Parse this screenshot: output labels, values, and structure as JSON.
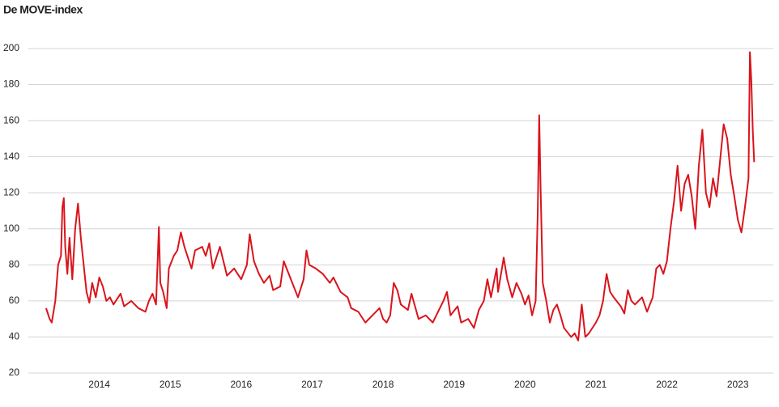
{
  "chart_data": {
    "type": "line",
    "title": "De MOVE-index",
    "x": [
      2013.25,
      2013.3,
      2013.33,
      2013.38,
      2013.42,
      2013.46,
      2013.48,
      2013.5,
      2013.52,
      2013.55,
      2013.58,
      2013.62,
      2013.66,
      2013.7,
      2013.74,
      2013.78,
      2013.82,
      2013.86,
      2013.9,
      2013.95,
      2014.0,
      2014.05,
      2014.1,
      2014.15,
      2014.2,
      2014.3,
      2014.35,
      2014.45,
      2014.55,
      2014.65,
      2014.7,
      2014.75,
      2014.8,
      2014.84,
      2014.86,
      2014.9,
      2014.95,
      2014.98,
      2015.0,
      2015.05,
      2015.1,
      2015.15,
      2015.2,
      2015.25,
      2015.3,
      2015.35,
      2015.45,
      2015.5,
      2015.55,
      2015.6,
      2015.7,
      2015.75,
      2015.8,
      2015.9,
      2016.0,
      2016.08,
      2016.12,
      2016.18,
      2016.25,
      2016.32,
      2016.4,
      2016.45,
      2016.55,
      2016.6,
      2016.7,
      2016.8,
      2016.88,
      2016.92,
      2016.96,
      2017.05,
      2017.15,
      2017.25,
      2017.3,
      2017.4,
      2017.5,
      2017.55,
      2017.65,
      2017.75,
      2017.85,
      2017.95,
      2018.0,
      2018.05,
      2018.1,
      2018.15,
      2018.2,
      2018.25,
      2018.35,
      2018.4,
      2018.5,
      2018.6,
      2018.7,
      2018.8,
      2018.85,
      2018.9,
      2018.95,
      2019.05,
      2019.1,
      2019.2,
      2019.28,
      2019.35,
      2019.42,
      2019.47,
      2019.52,
      2019.6,
      2019.62,
      2019.7,
      2019.75,
      2019.82,
      2019.88,
      2019.95,
      2020.0,
      2020.05,
      2020.1,
      2020.15,
      2020.18,
      2020.2,
      2020.22,
      2020.25,
      2020.3,
      2020.35,
      2020.4,
      2020.45,
      2020.5,
      2020.55,
      2020.65,
      2020.7,
      2020.75,
      2020.8,
      2020.85,
      2020.9,
      2021.0,
      2021.05,
      2021.1,
      2021.15,
      2021.2,
      2021.25,
      2021.35,
      2021.4,
      2021.45,
      2021.5,
      2021.55,
      2021.65,
      2021.72,
      2021.8,
      2021.85,
      2021.9,
      2021.95,
      2022.0,
      2022.05,
      2022.1,
      2022.15,
      2022.2,
      2022.25,
      2022.3,
      2022.35,
      2022.4,
      2022.45,
      2022.5,
      2022.55,
      2022.6,
      2022.65,
      2022.7,
      2022.75,
      2022.8,
      2022.85,
      2022.9,
      2022.95,
      2023.0,
      2023.05,
      2023.1,
      2023.15,
      2023.17,
      2023.19,
      2023.21,
      2023.23
    ],
    "series": [
      {
        "color": "#d9141c",
        "values": [
          56,
          50,
          48,
          60,
          80,
          85,
          112,
          117,
          90,
          75,
          95,
          72,
          100,
          114,
          95,
          80,
          65,
          59,
          70,
          62,
          73,
          68,
          60,
          62,
          58,
          64,
          57,
          60,
          56,
          54,
          60,
          64,
          58,
          101,
          70,
          65,
          56,
          78,
          80,
          85,
          88,
          98,
          90,
          84,
          78,
          88,
          90,
          85,
          92,
          78,
          90,
          82,
          74,
          78,
          72,
          80,
          97,
          82,
          75,
          70,
          74,
          66,
          68,
          82,
          72,
          62,
          72,
          88,
          80,
          78,
          75,
          70,
          73,
          65,
          62,
          56,
          54,
          48,
          52,
          56,
          50,
          48,
          52,
          70,
          66,
          58,
          55,
          64,
          50,
          52,
          48,
          56,
          60,
          65,
          52,
          57,
          48,
          50,
          45,
          55,
          60,
          72,
          62,
          78,
          65,
          84,
          72,
          62,
          70,
          64,
          58,
          63,
          52,
          60,
          110,
          163,
          122,
          70,
          60,
          48,
          55,
          58,
          52,
          45,
          40,
          42,
          38,
          58,
          40,
          42,
          48,
          52,
          60,
          75,
          65,
          62,
          57,
          53,
          66,
          60,
          58,
          62,
          54,
          62,
          78,
          80,
          75,
          82,
          100,
          115,
          135,
          110,
          125,
          130,
          118,
          100,
          135,
          155,
          120,
          112,
          128,
          118,
          138,
          158,
          150,
          130,
          118,
          105,
          98,
          112,
          128,
          198,
          182,
          155,
          137
        ]
      }
    ],
    "xlim": [
      2013,
      2023.5
    ],
    "xticks": [
      2014,
      2015,
      2016,
      2017,
      2018,
      2019,
      2020,
      2021,
      2022,
      2023
    ],
    "ylim": [
      20,
      200
    ],
    "yticks": [
      20,
      40,
      60,
      80,
      100,
      120,
      140,
      160,
      180,
      200
    ],
    "grid": true
  }
}
